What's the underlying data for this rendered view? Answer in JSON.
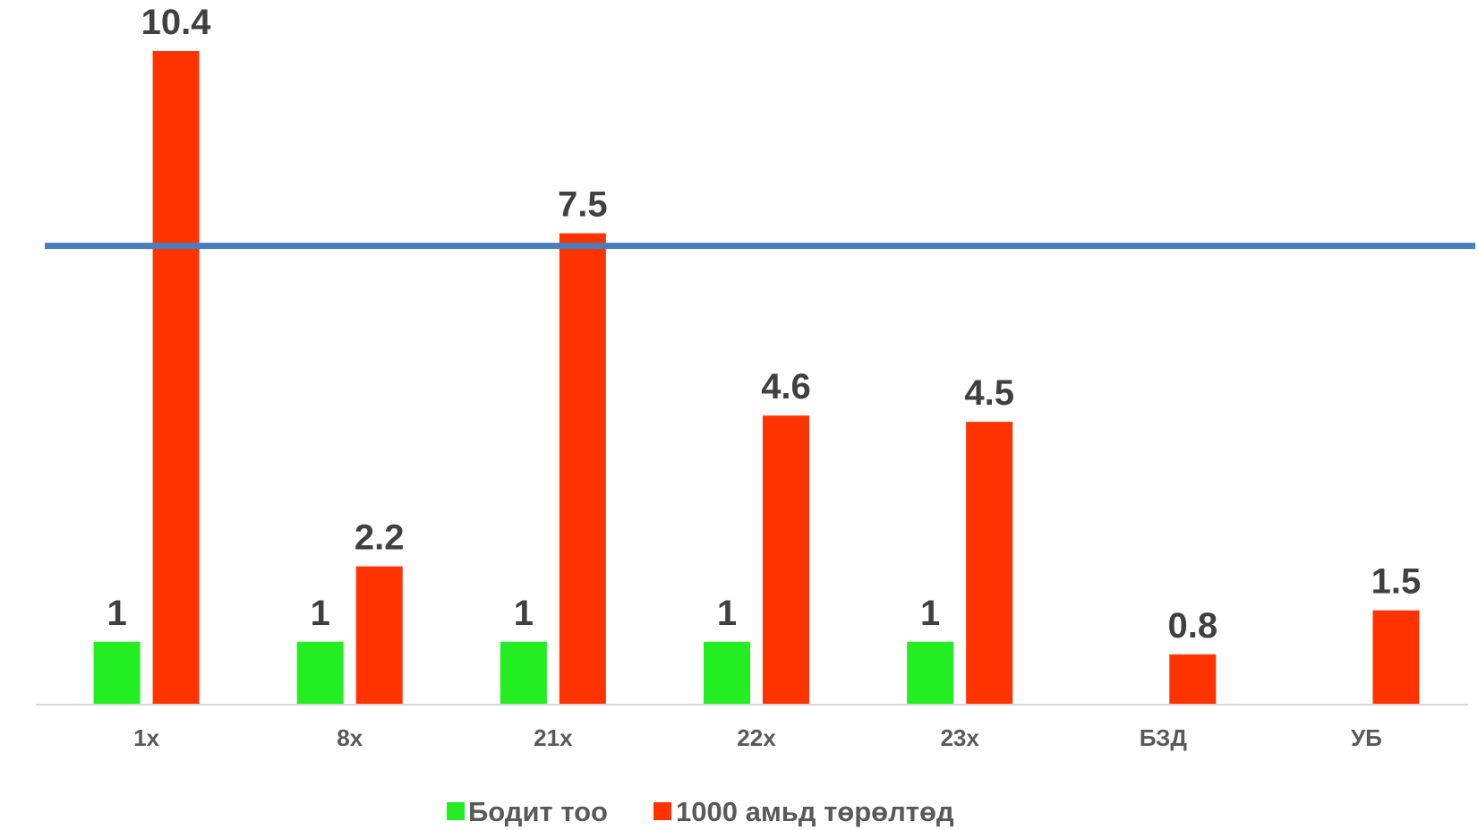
{
  "chart_data": {
    "type": "bar",
    "categories": [
      "1х",
      "8х",
      "21х",
      "22х",
      "23х",
      "БЗД",
      "УБ"
    ],
    "series": [
      {
        "name": "Бодит тоо",
        "color": "#22ee22",
        "values": [
          1,
          1,
          1,
          1,
          1,
          null,
          null
        ]
      },
      {
        "name": "1000 амьд төрөлтөд",
        "color": "#ff3300",
        "values": [
          10.4,
          2.2,
          7.5,
          4.6,
          4.5,
          0.8,
          1.5
        ]
      }
    ],
    "reference_line": {
      "value": 7.3,
      "color": "#4a7ebb"
    },
    "ylim": [
      0,
      11
    ],
    "legend_position": "bottom",
    "grid": false
  }
}
